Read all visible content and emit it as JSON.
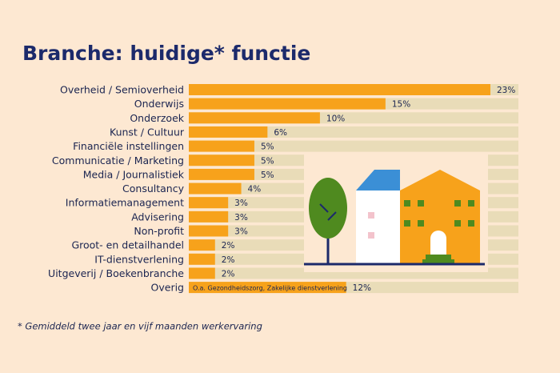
{
  "chart_data": {
    "type": "bar",
    "orientation": "horizontal",
    "title": "Branche: huidige* functie",
    "categories": [
      "Overheid / Semioverheid",
      "Onderwijs",
      "Onderzoek",
      "Kunst / Cultuur",
      "Financiële instellingen",
      "Communicatie / Marketing",
      "Media / Journalistiek",
      "Consultancy",
      "Informatiemanagement",
      "Advisering",
      "Non-profit",
      "Groot- en detailhandel",
      "IT-dienstverlening",
      "Uitgeverij / Boekenbranche",
      "Overig"
    ],
    "values": [
      23,
      15,
      10,
      6,
      5,
      5,
      5,
      4,
      3,
      3,
      3,
      2,
      2,
      2,
      12
    ],
    "value_labels": [
      "23%",
      "15%",
      "10%",
      "6%",
      "5%",
      "5%",
      "5%",
      "4%",
      "3%",
      "3%",
      "3%",
      "2%",
      "2%",
      "2%",
      "12%"
    ],
    "color": "#f7a21b",
    "track_color": "#e9dcb8",
    "annotation": "O.a. Gezondheidszorg, Zakelijke dienstverlening",
    "footnote": "* Gemiddeld twee jaar en vijf maanden werkervaring"
  }
}
